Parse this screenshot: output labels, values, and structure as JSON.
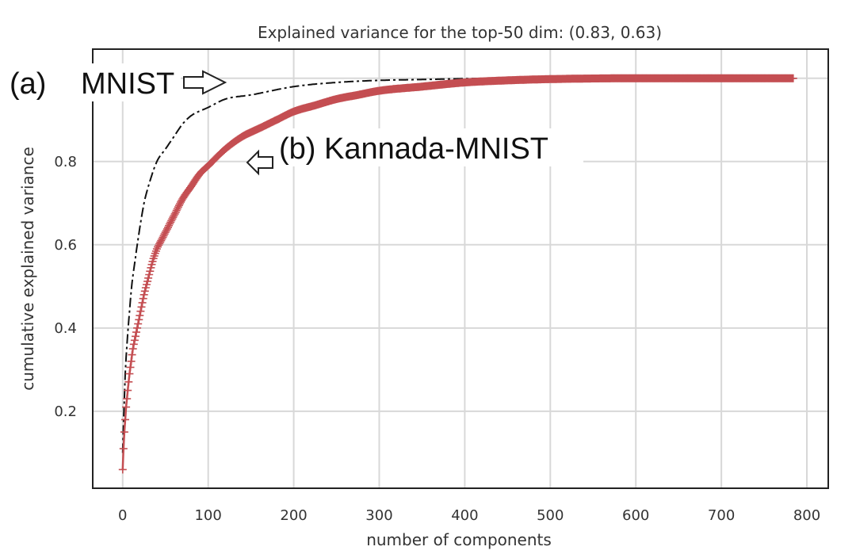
{
  "chart_data": {
    "type": "line",
    "title": "Explained variance for the top-50 dim: (0.83, 0.63)",
    "xlabel": "number of components",
    "ylabel": "cumulative explained variance",
    "xlim": [
      -35,
      825
    ],
    "ylim": [
      0.015,
      1.07
    ],
    "xticks": [
      0,
      100,
      200,
      300,
      400,
      500,
      600,
      700,
      800
    ],
    "xtick_labels": [
      "0",
      "100",
      "200",
      "300",
      "400",
      "500",
      "600",
      "700",
      "800"
    ],
    "yticks": [
      0.2,
      0.4,
      0.6,
      0.8
    ],
    "ytick_labels": [
      "0.2",
      "0.4",
      "0.6",
      "0.8"
    ],
    "grid": true,
    "series": [
      {
        "name": "MNIST",
        "style": "dash-dot",
        "color": "#111111",
        "x": [
          0,
          1,
          2,
          3,
          5,
          8,
          10,
          15,
          20,
          25,
          30,
          40,
          50,
          60,
          70,
          80,
          100,
          120,
          150,
          200,
          250,
          300,
          350,
          400,
          450,
          500,
          600,
          700,
          784
        ],
        "y": [
          0.1,
          0.17,
          0.23,
          0.29,
          0.36,
          0.44,
          0.49,
          0.57,
          0.64,
          0.7,
          0.74,
          0.8,
          0.83,
          0.86,
          0.89,
          0.91,
          0.93,
          0.95,
          0.96,
          0.98,
          0.99,
          0.995,
          0.997,
          0.999,
          1.0,
          1.0,
          1.0,
          1.0,
          1.0
        ]
      },
      {
        "name": "Kannada-MNIST",
        "style": "plus-markers",
        "color": "#c44e52",
        "x": [
          0,
          1,
          2,
          3,
          4,
          5,
          6,
          8,
          10,
          12,
          15,
          18,
          20,
          25,
          30,
          35,
          40,
          45,
          50,
          60,
          70,
          80,
          90,
          100,
          120,
          140,
          160,
          180,
          200,
          225,
          250,
          275,
          300,
          350,
          400,
          450,
          500,
          600,
          700,
          784
        ],
        "y": [
          0.06,
          0.11,
          0.15,
          0.18,
          0.21,
          0.23,
          0.25,
          0.29,
          0.32,
          0.35,
          0.38,
          0.41,
          0.43,
          0.48,
          0.52,
          0.56,
          0.59,
          0.61,
          0.63,
          0.67,
          0.71,
          0.74,
          0.77,
          0.79,
          0.83,
          0.86,
          0.88,
          0.9,
          0.92,
          0.935,
          0.95,
          0.96,
          0.97,
          0.98,
          0.99,
          0.995,
          0.998,
          1.0,
          1.0,
          1.0
        ]
      }
    ],
    "annotations": [
      {
        "id": "a-label",
        "text": "(a)"
      },
      {
        "id": "mnist-label",
        "text": "MNIST"
      },
      {
        "id": "kannada-label",
        "text": "(b) Kannada-MNIST"
      }
    ]
  }
}
